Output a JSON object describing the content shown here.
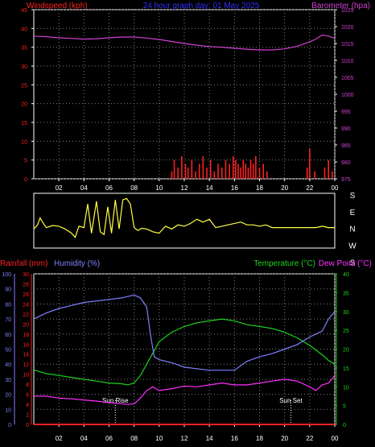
{
  "colors": {
    "windspeed": "#ff2020",
    "barometer": "#d040d0",
    "title": "#3030ff",
    "direction": "#ffff40",
    "rainfall": "#ff2020",
    "humidity": "#8080ff",
    "temperature": "#20d020",
    "dewpoint": "#ff30ff",
    "axis": "#ffffff",
    "grid": "#808080",
    "sun": "#ffffff"
  },
  "chart_data": [
    {
      "type": "line",
      "title": "24 hour graph day: 01 May 2025",
      "left_label": "Windspeed (kph)",
      "right_label": "Barometer (hpa)",
      "x_ticks": [
        "02",
        "04",
        "06",
        "08",
        "10",
        "12",
        "14",
        "16",
        "18",
        "20",
        "22",
        "00"
      ],
      "y_left_ticks": [
        0,
        5,
        10,
        15,
        20,
        25,
        30,
        35,
        40,
        45
      ],
      "y_left_range": [
        0,
        45
      ],
      "y_right_ticks": [
        975,
        980,
        985,
        990,
        995,
        1000,
        1005,
        1010,
        1015,
        1020,
        1025
      ],
      "y_right_range": [
        975,
        1025
      ],
      "series": [
        {
          "name": "Barometer (hpa)",
          "axis": "right",
          "x": [
            0,
            1,
            2,
            3,
            4,
            5,
            6,
            7,
            8,
            9,
            10,
            11,
            12,
            13,
            14,
            15,
            16,
            17,
            18,
            19,
            20,
            21,
            22,
            22.5,
            23,
            23.5,
            24
          ],
          "y": [
            1017.2,
            1017,
            1016.7,
            1016.5,
            1016.3,
            1016.4,
            1016.7,
            1016.9,
            1016.9,
            1016.6,
            1016.2,
            1015.6,
            1015,
            1014.5,
            1014.1,
            1013.9,
            1013.6,
            1013.3,
            1013.1,
            1013.1,
            1013.4,
            1014.2,
            1015.5,
            1016.3,
            1017.5,
            1017.2,
            1016.5
          ]
        },
        {
          "name": "Windspeed (kph)",
          "axis": "left",
          "type": "bar",
          "x": [
            11,
            11.2,
            11.5,
            11.8,
            12.1,
            12.3,
            12.6,
            12.9,
            13.2,
            13.5,
            13.8,
            14.1,
            14.4,
            14.7,
            15.0,
            15.3,
            15.6,
            15.9,
            16.1,
            16.3,
            16.5,
            16.7,
            16.9,
            17.1,
            17.3,
            17.5,
            17.7,
            18.0,
            18.3,
            18.6,
            21.8,
            22.0,
            22.4,
            23.2,
            23.5,
            23.8
          ],
          "y": [
            2,
            5,
            3,
            6,
            4,
            3,
            5,
            2,
            4,
            6,
            3,
            5,
            2,
            4,
            3,
            5,
            4,
            6,
            5,
            4,
            3,
            5,
            4,
            3,
            5,
            4,
            6,
            3,
            4,
            2,
            3,
            8,
            2,
            3,
            5,
            2
          ]
        }
      ]
    },
    {
      "type": "line",
      "title": "",
      "right_labels": [
        "S",
        "E",
        "N",
        "W",
        "S"
      ],
      "y_range": [
        0,
        360
      ],
      "series": [
        {
          "name": "Wind direction",
          "x": [
            0,
            0.3,
            0.5,
            0.8,
            1.0,
            1.5,
            2.0,
            2.5,
            3.0,
            3.3,
            3.6,
            4.0,
            4.3,
            4.6,
            5.0,
            5.3,
            5.6,
            5.9,
            6.2,
            6.5,
            6.8,
            7.1,
            7.4,
            7.7,
            8.0,
            8.3,
            8.6,
            9.0,
            9.5,
            10.0,
            10.5,
            11,
            11.5,
            12,
            12.5,
            13,
            13.5,
            14,
            14.5,
            15,
            15.5,
            16,
            16.5,
            17,
            17.5,
            18,
            18.5,
            19,
            20,
            21,
            22,
            22.5,
            23,
            23.5,
            24
          ],
          "y": [
            120,
            150,
            200,
            155,
            130,
            145,
            140,
            120,
            90,
            60,
            140,
            130,
            300,
            90,
            320,
            100,
            80,
            280,
            90,
            330,
            120,
            330,
            340,
            300,
            130,
            110,
            125,
            120,
            100,
            90,
            140,
            120,
            150,
            140,
            160,
            190,
            170,
            190,
            130,
            140,
            150,
            160,
            170,
            150,
            150,
            140,
            150,
            130,
            130,
            130,
            130,
            130,
            140,
            130,
            130
          ]
        }
      ]
    },
    {
      "type": "line",
      "title": "",
      "left_labels": [
        "Rainfall (mm)",
        "Humidity (%)"
      ],
      "right_labels": [
        "Temperature (°C)",
        "Dew Point (°C)"
      ],
      "x_ticks": [
        "02",
        "04",
        "06",
        "08",
        "10",
        "12",
        "14",
        "16",
        "18",
        "20",
        "22",
        "00"
      ],
      "y_humidity_ticks": [
        0,
        10,
        20,
        30,
        40,
        50,
        60,
        70,
        80,
        90,
        100
      ],
      "y_humidity_range": [
        0,
        100
      ],
      "y_rain_ticks": [
        0,
        2,
        4,
        6,
        8,
        10,
        12,
        14,
        16,
        18,
        20,
        22,
        24,
        26,
        28,
        30
      ],
      "y_rain_range": [
        0,
        30
      ],
      "y_temp_ticks": [
        0,
        5,
        10,
        15,
        20,
        25,
        30,
        35,
        40
      ],
      "y_temp_range": [
        0,
        40
      ],
      "annotations": [
        {
          "text": "Sun Rise",
          "x": 6.5
        },
        {
          "text": "Sun Set",
          "x": 20.5
        }
      ],
      "series": [
        {
          "name": "Humidity (%)",
          "axis": "humidity",
          "x": [
            0,
            1,
            2,
            3,
            4,
            5,
            6,
            7,
            7.5,
            8,
            8.5,
            9,
            9.3,
            9.6,
            10,
            11,
            12,
            13,
            14,
            15,
            16,
            17,
            18,
            19,
            20,
            21,
            22,
            23,
            23.5,
            24
          ],
          "y": [
            70,
            74,
            77,
            79,
            81,
            82,
            83,
            84,
            85,
            86,
            84,
            78,
            60,
            45,
            43,
            41,
            38,
            37,
            36,
            36,
            36,
            42,
            45,
            47,
            50,
            53,
            58,
            62,
            70,
            75
          ]
        },
        {
          "name": "Temperature (°C)",
          "axis": "temp",
          "x": [
            0,
            1,
            2,
            3,
            4,
            5,
            6,
            7,
            7.5,
            8,
            8.5,
            9,
            9.5,
            10,
            11,
            12,
            13,
            14,
            15,
            16,
            17,
            18,
            19,
            20,
            21,
            22,
            23,
            23.5,
            24
          ],
          "y": [
            14.5,
            13.5,
            13,
            12.5,
            12,
            11.5,
            11,
            10.8,
            10.5,
            11,
            13,
            16,
            19,
            22,
            24.5,
            26,
            27,
            27.5,
            28,
            27.5,
            26.5,
            26,
            25.5,
            24.5,
            23,
            21,
            18.5,
            17,
            16
          ]
        },
        {
          "name": "Dew Point (°C)",
          "axis": "temp",
          "x": [
            0,
            1,
            2,
            3,
            4,
            5,
            6,
            7,
            7.5,
            8,
            8.5,
            9,
            9.5,
            10,
            11,
            12,
            13,
            14,
            15,
            16,
            17,
            18,
            19,
            20,
            21,
            22,
            22.5,
            23,
            23.5,
            24
          ],
          "y": [
            7.5,
            7.5,
            7,
            6.8,
            6.5,
            6.2,
            5.8,
            5.5,
            5.3,
            5.5,
            7,
            9,
            10,
            9,
            9.5,
            10.2,
            10,
            10.5,
            11,
            10.5,
            10.5,
            11,
            11.5,
            12,
            11.5,
            10,
            9,
            10.5,
            11,
            13
          ]
        },
        {
          "name": "Rainfall (mm)",
          "axis": "rain",
          "x": [
            0,
            24
          ],
          "y": [
            0,
            0
          ]
        }
      ]
    }
  ]
}
